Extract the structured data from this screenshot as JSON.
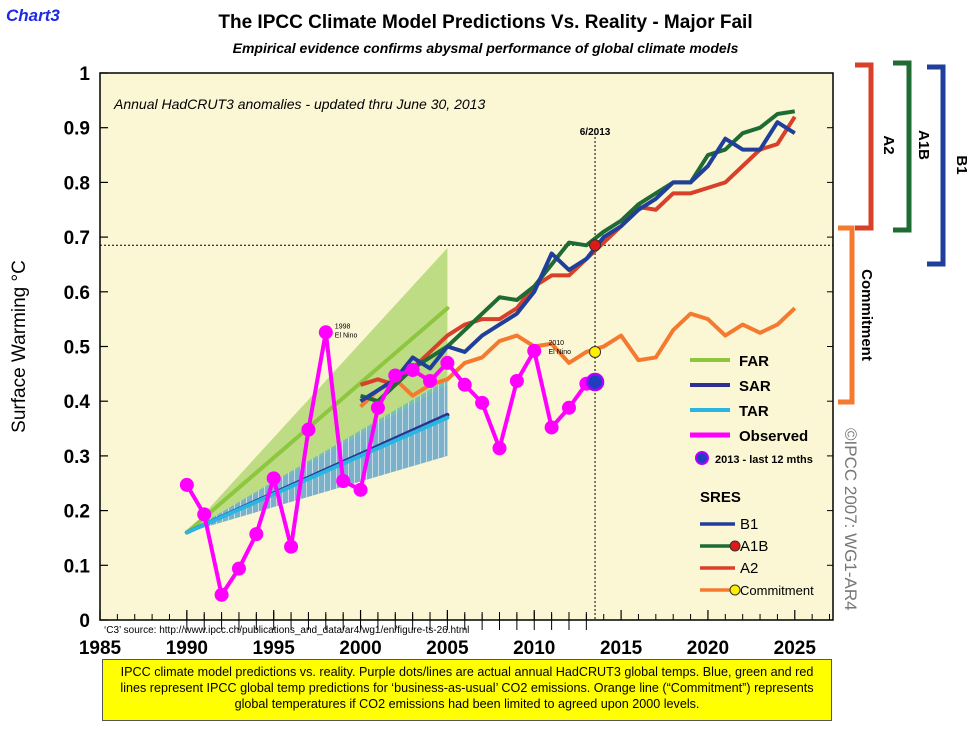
{
  "header": {
    "chart_label": "Chart3",
    "title": "The IPCC Climate Model Predictions Vs. Reality - Major Fail",
    "subtitle": "Empirical evidence confirms abysmal performance of global climate models"
  },
  "caption": "IPCC climate model predictions vs. reality. Purple dots/lines are actual annual HadCRUT3 global temps. Blue, green and red lines represent IPCC global temp predictions for ‘business-as-usual’ CO2 emissions. Orange line (“Commitment”) represents global temperatures if CO2 emissions had been limited to agreed upon 2000 levels.",
  "colors": {
    "plot_bg": "#fbf6d4",
    "far": "#8dc63f",
    "sar": "#2e3192",
    "tar": "#29b6e0",
    "observed": "#ff00ff",
    "b1": "#1f3f9a",
    "a1b": "#1e6b34",
    "a2": "#d8402a",
    "commitment": "#f47a30"
  },
  "chart_data": {
    "type": "line",
    "inner_note": "Annual HadCRUT3 anomalies - updated thru June 30, 2013",
    "ylabel": "Surface Warming °C",
    "xlim": [
      1985,
      2027.2
    ],
    "ylim": [
      0,
      1
    ],
    "x_ticks": [
      1985,
      1990,
      1995,
      2000,
      2005,
      2010,
      2015,
      2020,
      2025
    ],
    "y_ticks": [
      0,
      0.1,
      0.2,
      0.3,
      0.4,
      0.5,
      0.6,
      0.7,
      0.8,
      0.9,
      1
    ],
    "y_tick_labels": [
      "0",
      "0.1",
      "0.2",
      "0.3",
      "0.4",
      "0.5",
      "0.6",
      "0.7",
      "0.8",
      "0.9",
      "1"
    ],
    "marker_2013": {
      "x": 2013.5,
      "label": "6/2013",
      "hline_y": 0.685
    },
    "legend_models": [
      {
        "name": "FAR",
        "color": "#8dc63f"
      },
      {
        "name": "SAR",
        "color": "#2e3192"
      },
      {
        "name": "TAR",
        "color": "#29b6e0"
      },
      {
        "name": "Observed",
        "color": "#ff00ff"
      },
      {
        "name": "2013 - last 12 mths",
        "color": "#1f3fc0"
      }
    ],
    "legend_sres": {
      "title": "SRES",
      "items": [
        {
          "name": "B1",
          "color": "#1f3f9a"
        },
        {
          "name": "A1B",
          "color": "#1e6b34"
        },
        {
          "name": "A2",
          "color": "#d8402a"
        },
        {
          "name": "Commitment",
          "color": "#f47a30"
        }
      ]
    },
    "annotations": [
      {
        "text1": "1998",
        "text2": "El Nino",
        "x": 1998,
        "y": 0.526
      },
      {
        "text1": "2010",
        "text2": "El Nino",
        "x": 2010.3,
        "y": 0.495
      }
    ],
    "source_note": "‘C3’ source: http://www.ipcc.ch/publications_and_data/ar4/wg1/en/figure-ts-26.html",
    "copyright": "©IPCC 2007: WG1-AR4",
    "side_brackets": [
      {
        "label": "A2",
        "color": "#d8402a"
      },
      {
        "label": "A1B",
        "color": "#1e6b34"
      },
      {
        "label": "B1",
        "color": "#1f3f9a"
      },
      {
        "label": "Commitment",
        "color": "#f47a30"
      }
    ],
    "bands": [
      {
        "name": "FAR",
        "x": [
          1990,
          2005
        ],
        "lower": [
          0.16,
          0.3
        ],
        "upper": [
          0.16,
          0.68
        ],
        "center": [
          0.16,
          0.57
        ]
      },
      {
        "name": "SAR",
        "x": [
          1990,
          2005
        ],
        "lower": [
          0.16,
          0.3
        ],
        "upper": [
          0.16,
          0.43
        ],
        "center": [
          0.16,
          0.375
        ]
      },
      {
        "name": "TAR",
        "x": [
          1990,
          2005
        ],
        "lower": [
          0.16,
          0.3
        ],
        "upper": [
          0.16,
          0.44
        ],
        "center": [
          0.16,
          0.37
        ]
      }
    ],
    "series": [
      {
        "name": "Observed",
        "x": [
          1990,
          1991,
          1992,
          1993,
          1994,
          1995,
          1996,
          1997,
          1998,
          1999,
          2000,
          2001,
          2002,
          2003,
          2004,
          2005,
          2006,
          2007,
          2008,
          2009,
          2010,
          2011,
          2012,
          2013
        ],
        "y": [
          0.247,
          0.193,
          0.046,
          0.094,
          0.157,
          0.259,
          0.134,
          0.348,
          0.526,
          0.254,
          0.238,
          0.388,
          0.447,
          0.457,
          0.437,
          0.47,
          0.43,
          0.397,
          0.314,
          0.437,
          0.492,
          0.352,
          0.388,
          0.432
        ]
      },
      {
        "name": "B1",
        "x": [
          2000,
          2001,
          2002,
          2003,
          2004,
          2005,
          2006,
          2007,
          2008,
          2009,
          2010,
          2011,
          2012,
          2013,
          2014,
          2015,
          2016,
          2017,
          2018,
          2019,
          2020,
          2021,
          2022,
          2023,
          2024,
          2025
        ],
        "y": [
          0.4,
          0.42,
          0.44,
          0.48,
          0.46,
          0.5,
          0.49,
          0.52,
          0.54,
          0.56,
          0.6,
          0.67,
          0.64,
          0.66,
          0.7,
          0.72,
          0.75,
          0.77,
          0.8,
          0.8,
          0.83,
          0.88,
          0.86,
          0.86,
          0.91,
          0.89
        ]
      },
      {
        "name": "A1B",
        "x": [
          2000,
          2001,
          2002,
          2003,
          2004,
          2005,
          2006,
          2007,
          2008,
          2009,
          2010,
          2011,
          2012,
          2013,
          2014,
          2015,
          2016,
          2017,
          2018,
          2019,
          2020,
          2021,
          2022,
          2023,
          2024,
          2025
        ],
        "y": [
          0.41,
          0.4,
          0.43,
          0.46,
          0.48,
          0.5,
          0.53,
          0.56,
          0.59,
          0.585,
          0.61,
          0.65,
          0.69,
          0.685,
          0.71,
          0.73,
          0.76,
          0.78,
          0.8,
          0.8,
          0.85,
          0.86,
          0.89,
          0.9,
          0.925,
          0.93
        ]
      },
      {
        "name": "A2",
        "x": [
          2000,
          2001,
          2002,
          2003,
          2004,
          2005,
          2006,
          2007,
          2008,
          2009,
          2010,
          2011,
          2012,
          2013,
          2014,
          2015,
          2016,
          2017,
          2018,
          2019,
          2020,
          2021,
          2022,
          2023,
          2024,
          2025
        ],
        "y": [
          0.43,
          0.44,
          0.43,
          0.46,
          0.49,
          0.52,
          0.54,
          0.55,
          0.55,
          0.57,
          0.61,
          0.63,
          0.63,
          0.66,
          0.69,
          0.72,
          0.755,
          0.75,
          0.78,
          0.78,
          0.79,
          0.8,
          0.83,
          0.86,
          0.87,
          0.92
        ]
      },
      {
        "name": "Commitment",
        "x": [
          2000,
          2001,
          2002,
          2003,
          2004,
          2005,
          2006,
          2007,
          2008,
          2009,
          2010,
          2011,
          2012,
          2013,
          2014,
          2015,
          2016,
          2017,
          2018,
          2019,
          2020,
          2021,
          2022,
          2023,
          2024,
          2025
        ],
        "y": [
          0.39,
          0.42,
          0.44,
          0.41,
          0.43,
          0.44,
          0.47,
          0.48,
          0.51,
          0.52,
          0.5,
          0.505,
          0.47,
          0.49,
          0.5,
          0.52,
          0.475,
          0.48,
          0.53,
          0.56,
          0.55,
          0.52,
          0.54,
          0.525,
          0.54,
          0.57
        ]
      }
    ],
    "points_2013": [
      {
        "name": "A1B 2013",
        "x": 2013.5,
        "y": 0.685,
        "color": "#e01818"
      },
      {
        "name": "Commitment 2013",
        "x": 2013.5,
        "y": 0.49,
        "color": "#ffee00"
      },
      {
        "name": "Observed last 12 mths",
        "x": 2013.5,
        "y": 0.435,
        "color": "#1f3fc0"
      }
    ]
  }
}
